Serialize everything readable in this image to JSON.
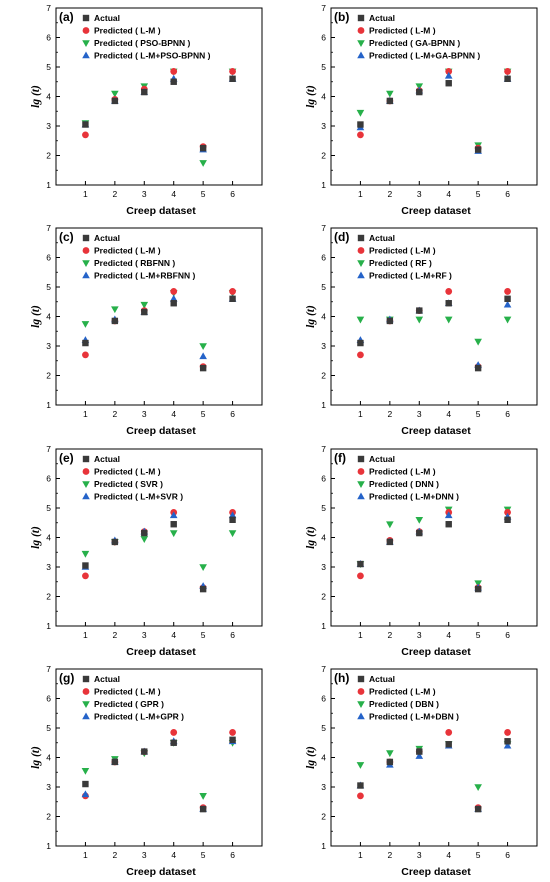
{
  "colors": {
    "actual": "#3a3a3a",
    "lm": "#e8343a",
    "model": "#27b04a",
    "hybrid": "#2563c9"
  },
  "markers": {
    "actual": "square",
    "lm": "circle",
    "model": "triangle-down",
    "hybrid": "triangle-up"
  },
  "chart_data": [
    {
      "type": "scatter",
      "panel_label": "(a)",
      "xlabel": "Creep dataset",
      "ylabel": "lg (t)",
      "xlim": [
        0,
        7
      ],
      "ylim": [
        1,
        7
      ],
      "x_ticks": [
        "1",
        "2",
        "3",
        "4",
        "5",
        "6"
      ],
      "y_ticks": [
        "1",
        "2",
        "3",
        "4",
        "5",
        "6",
        "7"
      ],
      "legend_position": "top-left",
      "series": [
        {
          "name": "Actual",
          "role": "actual",
          "x": [
            1,
            2,
            3,
            4,
            5,
            6
          ],
          "values": [
            3.05,
            3.85,
            4.15,
            4.5,
            2.25,
            4.6
          ]
        },
        {
          "name": "Predicted  ( L-M )",
          "role": "lm",
          "x": [
            1,
            2,
            3,
            4,
            5,
            6
          ],
          "values": [
            2.7,
            3.9,
            4.25,
            4.85,
            2.3,
            4.85
          ]
        },
        {
          "name": "Predicted  ( PSO-BPNN )",
          "role": "model",
          "x": [
            1,
            2,
            3,
            4,
            5,
            6
          ],
          "values": [
            3.1,
            4.1,
            4.35,
            4.85,
            1.75,
            4.85
          ]
        },
        {
          "name": "Predicted  ( L-M+PSO-BPNN )",
          "role": "hybrid",
          "x": [
            1,
            2,
            3,
            4,
            5,
            6
          ],
          "values": [
            3.05,
            3.85,
            4.15,
            4.6,
            2.2,
            4.6
          ]
        }
      ]
    },
    {
      "type": "scatter",
      "panel_label": "(b)",
      "xlabel": "Creep dataset",
      "ylabel": "lg (t)",
      "xlim": [
        0,
        7
      ],
      "ylim": [
        1,
        7
      ],
      "x_ticks": [
        "1",
        "2",
        "3",
        "4",
        "5",
        "6"
      ],
      "y_ticks": [
        "1",
        "2",
        "3",
        "4",
        "5",
        "6",
        "7"
      ],
      "legend_position": "top-left",
      "series": [
        {
          "name": "Actual",
          "role": "actual",
          "x": [
            1,
            2,
            3,
            4,
            5,
            6
          ],
          "values": [
            3.05,
            3.85,
            4.15,
            4.45,
            2.2,
            4.6
          ]
        },
        {
          "name": "Predicted  ( L-M )",
          "role": "lm",
          "x": [
            1,
            2,
            3,
            4,
            5,
            6
          ],
          "values": [
            2.7,
            3.85,
            4.2,
            4.85,
            2.25,
            4.85
          ]
        },
        {
          "name": "Predicted  ( GA-BPNN )",
          "role": "model",
          "x": [
            1,
            2,
            3,
            4,
            5,
            6
          ],
          "values": [
            3.45,
            4.1,
            4.35,
            4.85,
            2.35,
            4.85
          ]
        },
        {
          "name": "Predicted  ( L-M+GA-BPNN )",
          "role": "hybrid",
          "x": [
            1,
            2,
            3,
            4,
            5,
            6
          ],
          "values": [
            2.95,
            3.85,
            4.2,
            4.7,
            2.15,
            4.6
          ]
        }
      ]
    },
    {
      "type": "scatter",
      "panel_label": "(c)",
      "xlabel": "Creep dataset",
      "ylabel": "lg (t)",
      "xlim": [
        0,
        7
      ],
      "ylim": [
        1,
        7
      ],
      "x_ticks": [
        "1",
        "2",
        "3",
        "4",
        "5",
        "6"
      ],
      "y_ticks": [
        "1",
        "2",
        "3",
        "4",
        "5",
        "6",
        "7"
      ],
      "legend_position": "top-left",
      "series": [
        {
          "name": "Actual",
          "role": "actual",
          "x": [
            1,
            2,
            3,
            4,
            5,
            6
          ],
          "values": [
            3.1,
            3.85,
            4.15,
            4.45,
            2.25,
            4.6
          ]
        },
        {
          "name": "Predicted  ( L-M )",
          "role": "lm",
          "x": [
            1,
            2,
            3,
            4,
            5,
            6
          ],
          "values": [
            2.7,
            3.85,
            4.2,
            4.85,
            2.3,
            4.85
          ]
        },
        {
          "name": "Predicted  ( RBFNN )",
          "role": "model",
          "x": [
            1,
            2,
            3,
            4,
            5,
            6
          ],
          "values": [
            3.75,
            4.25,
            4.4,
            4.8,
            3.0,
            4.8
          ]
        },
        {
          "name": "Predicted  ( L-M+RBFNN )",
          "role": "hybrid",
          "x": [
            1,
            2,
            3,
            4,
            5,
            6
          ],
          "values": [
            3.2,
            3.9,
            4.15,
            4.6,
            2.65,
            4.6
          ]
        }
      ]
    },
    {
      "type": "scatter",
      "panel_label": "(d)",
      "xlabel": "Creep dataset",
      "ylabel": "lg (t)",
      "xlim": [
        0,
        7
      ],
      "ylim": [
        1,
        7
      ],
      "x_ticks": [
        "1",
        "2",
        "3",
        "4",
        "5",
        "6"
      ],
      "y_ticks": [
        "1",
        "2",
        "3",
        "4",
        "5",
        "6",
        "7"
      ],
      "legend_position": "top-left",
      "series": [
        {
          "name": "Actual",
          "role": "actual",
          "x": [
            1,
            2,
            3,
            4,
            5,
            6
          ],
          "values": [
            3.1,
            3.85,
            4.2,
            4.45,
            2.25,
            4.6
          ]
        },
        {
          "name": "Predicted  ( L-M )",
          "role": "lm",
          "x": [
            1,
            2,
            3,
            4,
            5,
            6
          ],
          "values": [
            2.7,
            3.85,
            4.2,
            4.85,
            2.3,
            4.85
          ]
        },
        {
          "name": "Predicted  ( RF )",
          "role": "model",
          "x": [
            1,
            2,
            3,
            4,
            5,
            6
          ],
          "values": [
            3.9,
            3.9,
            3.9,
            3.9,
            3.15,
            3.9
          ]
        },
        {
          "name": "Predicted  ( L-M+RF )",
          "role": "hybrid",
          "x": [
            1,
            2,
            3,
            4,
            5,
            6
          ],
          "values": [
            3.2,
            3.9,
            4.2,
            4.45,
            2.35,
            4.4
          ]
        }
      ]
    },
    {
      "type": "scatter",
      "panel_label": "(e)",
      "xlabel": "Creep dataset",
      "ylabel": "lg (t)",
      "xlim": [
        0,
        7
      ],
      "ylim": [
        1,
        7
      ],
      "x_ticks": [
        "1",
        "2",
        "3",
        "4",
        "5",
        "6"
      ],
      "y_ticks": [
        "1",
        "2",
        "3",
        "4",
        "5",
        "6",
        "7"
      ],
      "legend_position": "top-left",
      "series": [
        {
          "name": "Actual",
          "role": "actual",
          "x": [
            1,
            2,
            3,
            4,
            5,
            6
          ],
          "values": [
            3.05,
            3.85,
            4.15,
            4.45,
            2.25,
            4.6
          ]
        },
        {
          "name": "Predicted  ( L-M )",
          "role": "lm",
          "x": [
            1,
            2,
            3,
            4,
            5,
            6
          ],
          "values": [
            2.7,
            3.85,
            4.2,
            4.85,
            2.3,
            4.85
          ]
        },
        {
          "name": "Predicted  ( SVR )",
          "role": "model",
          "x": [
            1,
            2,
            3,
            4,
            5,
            6
          ],
          "values": [
            3.45,
            3.85,
            3.95,
            4.15,
            3.0,
            4.15
          ]
        },
        {
          "name": "Predicted  ( L-M+SVR )",
          "role": "hybrid",
          "x": [
            1,
            2,
            3,
            4,
            5,
            6
          ],
          "values": [
            3.0,
            3.9,
            4.2,
            4.75,
            2.35,
            4.75
          ]
        }
      ]
    },
    {
      "type": "scatter",
      "panel_label": "(f)",
      "xlabel": "Creep dataset",
      "ylabel": "lg (t)",
      "xlim": [
        0,
        7
      ],
      "ylim": [
        1,
        7
      ],
      "x_ticks": [
        "1",
        "2",
        "3",
        "4",
        "5",
        "6"
      ],
      "y_ticks": [
        "1",
        "2",
        "3",
        "4",
        "5",
        "6",
        "7"
      ],
      "legend_position": "top-left",
      "series": [
        {
          "name": "Actual",
          "role": "actual",
          "x": [
            1,
            2,
            3,
            4,
            5,
            6
          ],
          "values": [
            3.1,
            3.85,
            4.15,
            4.45,
            2.25,
            4.6
          ]
        },
        {
          "name": "Predicted  ( L-M )",
          "role": "lm",
          "x": [
            1,
            2,
            3,
            4,
            5,
            6
          ],
          "values": [
            2.7,
            3.9,
            4.2,
            4.85,
            2.3,
            4.85
          ]
        },
        {
          "name": "Predicted  ( DNN )",
          "role": "model",
          "x": [
            1,
            2,
            3,
            4,
            5,
            6
          ],
          "values": [
            3.1,
            4.45,
            4.6,
            4.95,
            2.45,
            4.95
          ]
        },
        {
          "name": "Predicted  ( L-M+DNN )",
          "role": "hybrid",
          "x": [
            1,
            2,
            3,
            4,
            5,
            6
          ],
          "values": [
            3.1,
            3.85,
            4.2,
            4.75,
            2.3,
            4.7
          ]
        }
      ]
    },
    {
      "type": "scatter",
      "panel_label": "(g)",
      "xlabel": "Creep dataset",
      "ylabel": "lg (t)",
      "xlim": [
        0,
        7
      ],
      "ylim": [
        1,
        7
      ],
      "x_ticks": [
        "1",
        "2",
        "3",
        "4",
        "5",
        "6"
      ],
      "y_ticks": [
        "1",
        "2",
        "3",
        "4",
        "5",
        "6",
        "7"
      ],
      "legend_position": "top-left",
      "series": [
        {
          "name": "Actual",
          "role": "actual",
          "x": [
            1,
            2,
            3,
            4,
            5,
            6
          ],
          "values": [
            3.1,
            3.85,
            4.2,
            4.5,
            2.25,
            4.6
          ]
        },
        {
          "name": "Predicted  ( L-M )",
          "role": "lm",
          "x": [
            1,
            2,
            3,
            4,
            5,
            6
          ],
          "values": [
            2.7,
            3.85,
            4.2,
            4.85,
            2.3,
            4.85
          ]
        },
        {
          "name": "Predicted  ( GPR )",
          "role": "model",
          "x": [
            1,
            2,
            3,
            4,
            5,
            6
          ],
          "values": [
            3.55,
            3.95,
            4.15,
            4.5,
            2.7,
            4.5
          ]
        },
        {
          "name": "Predicted  ( L-M+GPR )",
          "role": "hybrid",
          "x": [
            1,
            2,
            3,
            4,
            5,
            6
          ],
          "values": [
            2.75,
            3.85,
            4.2,
            4.55,
            2.25,
            4.55
          ]
        }
      ]
    },
    {
      "type": "scatter",
      "panel_label": "(h)",
      "xlabel": "Creep dataset",
      "ylabel": "lg (t)",
      "xlim": [
        0,
        7
      ],
      "ylim": [
        1,
        7
      ],
      "x_ticks": [
        "1",
        "2",
        "3",
        "4",
        "5",
        "6"
      ],
      "y_ticks": [
        "1",
        "2",
        "3",
        "4",
        "5",
        "6",
        "7"
      ],
      "legend_position": "top-left",
      "series": [
        {
          "name": "Actual",
          "role": "actual",
          "x": [
            1,
            2,
            3,
            4,
            5,
            6
          ],
          "values": [
            3.05,
            3.85,
            4.2,
            4.45,
            2.25,
            4.55
          ]
        },
        {
          "name": "Predicted  ( L-M )",
          "role": "lm",
          "x": [
            1,
            2,
            3,
            4,
            5,
            6
          ],
          "values": [
            2.7,
            3.85,
            4.2,
            4.85,
            2.3,
            4.85
          ]
        },
        {
          "name": "Predicted  ( DBN )",
          "role": "model",
          "x": [
            1,
            2,
            3,
            4,
            5,
            6
          ],
          "values": [
            3.75,
            4.15,
            4.3,
            4.45,
            3.0,
            4.45
          ]
        },
        {
          "name": "Predicted  ( L-M+DBN )",
          "role": "hybrid",
          "x": [
            1,
            2,
            3,
            4,
            5,
            6
          ],
          "values": [
            3.05,
            3.75,
            4.05,
            4.4,
            2.25,
            4.4
          ]
        }
      ]
    }
  ]
}
